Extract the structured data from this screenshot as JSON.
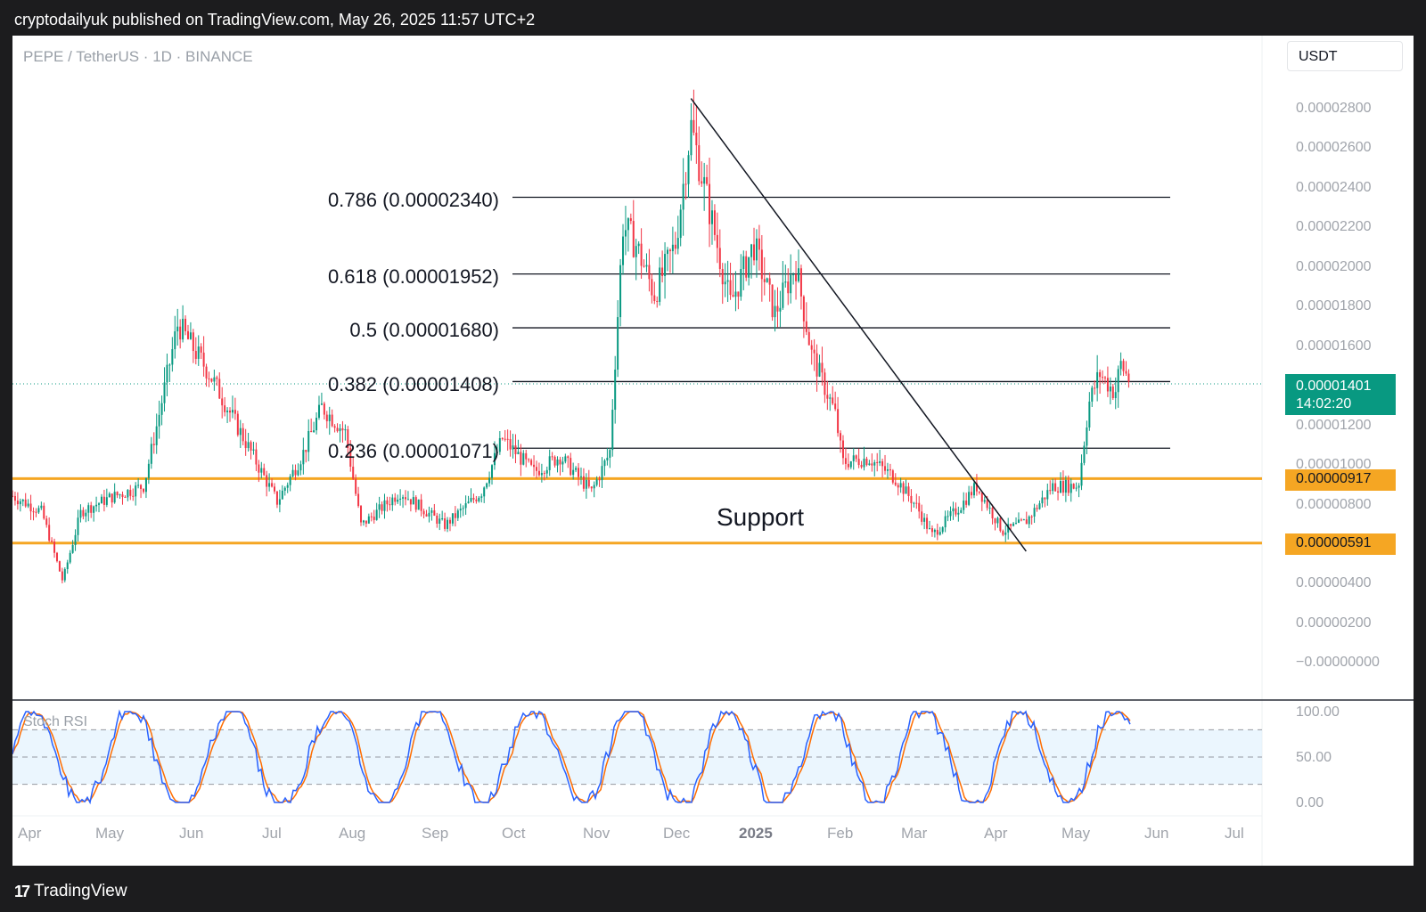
{
  "header": {
    "publisher_line": "cryptodailyuk published on TradingView.com, May 26, 2025 11:57 UTC+2"
  },
  "chart": {
    "symbol_info": "PEPE / TetherUS · 1D · BINANCE",
    "currency": "USDT",
    "support_label": "Support",
    "rsi_label": "Stoch RSI"
  },
  "footer": {
    "brand": "TradingView",
    "logo_icon": "tradingview-logo-icon"
  },
  "colors": {
    "support_line": "#f5a623",
    "last_price": "#089981",
    "up_candle": "#089981",
    "down_candle": "#f23645",
    "k_line": "#2962ff",
    "d_line": "#ff6d00"
  },
  "chart_data": {
    "type": "candlestick",
    "y_axis": {
      "ticks": [
        "0.00002800",
        "0.00002600",
        "0.00002400",
        "0.00002200",
        "0.00002000",
        "0.00001800",
        "0.00001600",
        "0.00001200",
        "0.00001000",
        "0.00000800",
        "0.00000400",
        "0.00000200",
        "−0.00000000"
      ],
      "range": [
        0,
        2.8e-05
      ]
    },
    "x_axis": {
      "ticks": [
        "Apr",
        "May",
        "Jun",
        "Jul",
        "Aug",
        "Sep",
        "Oct",
        "Nov",
        "Dec",
        "2025",
        "Feb",
        "Mar",
        "Apr",
        "May",
        "Jun",
        "Jul"
      ]
    },
    "fib_levels": [
      {
        "label": "0.786 (0.00002340)",
        "value": 2.34e-05
      },
      {
        "label": "0.618 (0.00001952)",
        "value": 1.952e-05
      },
      {
        "label": "0.5 (0.00001680)",
        "value": 1.68e-05
      },
      {
        "label": "0.382 (0.00001408)",
        "value": 1.408e-05
      },
      {
        "label": "0.236 (0.00001071)",
        "value": 1.071e-05
      }
    ],
    "support_levels": [
      {
        "label": "0.00000917",
        "value": 9.17e-06
      },
      {
        "label": "0.00000591",
        "value": 5.91e-06
      }
    ],
    "last_price": {
      "label": "0.00001401",
      "countdown": "14:02:20",
      "value": 1.401e-05
    },
    "trendline": {
      "from": {
        "date": "2024-12-09",
        "value": 2.84e-05
      },
      "to": {
        "date": "2025-04-16",
        "value": 5.5e-06
      }
    },
    "price_path": [
      [
        "2024-03-22",
        8.5e-06
      ],
      [
        "2024-04-05",
        7.5e-06
      ],
      [
        "2024-04-13",
        4e-06
      ],
      [
        "2024-04-20",
        7.5e-06
      ],
      [
        "2024-05-01",
        8.2e-06
      ],
      [
        "2024-05-14",
        8.8e-06
      ],
      [
        "2024-05-20",
        1.25e-05
      ],
      [
        "2024-05-27",
        1.7e-05
      ],
      [
        "2024-06-08",
        1.45e-05
      ],
      [
        "2024-06-20",
        1.15e-05
      ],
      [
        "2024-07-04",
        8e-06
      ],
      [
        "2024-07-14",
        1.05e-05
      ],
      [
        "2024-07-21",
        1.28e-05
      ],
      [
        "2024-07-30",
        1.15e-05
      ],
      [
        "2024-08-05",
        6.8e-06
      ],
      [
        "2024-08-20",
        8.5e-06
      ],
      [
        "2024-09-06",
        6.8e-06
      ],
      [
        "2024-09-20",
        8.5e-06
      ],
      [
        "2024-09-28",
        1.12e-05
      ],
      [
        "2024-10-10",
        9.5e-06
      ],
      [
        "2024-10-20",
        1.03e-05
      ],
      [
        "2024-11-01",
        8.5e-06
      ],
      [
        "2024-11-08",
        1.05e-05
      ],
      [
        "2024-11-13",
        2.2e-05
      ],
      [
        "2024-11-18",
        2.1e-05
      ],
      [
        "2024-11-25",
        1.85e-05
      ],
      [
        "2024-12-03",
        2.1e-05
      ],
      [
        "2024-12-09",
        2.7e-05
      ],
      [
        "2024-12-19",
        2.1e-05
      ],
      [
        "2024-12-24",
        1.8e-05
      ],
      [
        "2025-01-02",
        2.1e-05
      ],
      [
        "2025-01-10",
        1.75e-05
      ],
      [
        "2025-01-18",
        2e-05
      ],
      [
        "2025-01-24",
        1.55e-05
      ],
      [
        "2025-02-02",
        1.25e-05
      ],
      [
        "2025-02-05",
        1e-05
      ],
      [
        "2025-02-15",
        1.02e-05
      ],
      [
        "2025-02-25",
        9.2e-06
      ],
      [
        "2025-03-05",
        7.8e-06
      ],
      [
        "2025-03-11",
        6.3e-06
      ],
      [
        "2025-03-22",
        7.8e-06
      ],
      [
        "2025-03-28",
        8.8e-06
      ],
      [
        "2025-04-07",
        6.5e-06
      ],
      [
        "2025-04-16",
        7e-06
      ],
      [
        "2025-04-26",
        8.8e-06
      ],
      [
        "2025-05-06",
        8.8e-06
      ],
      [
        "2025-05-10",
        1.3e-05
      ],
      [
        "2025-05-14",
        1.45e-05
      ],
      [
        "2025-05-20",
        1.35e-05
      ],
      [
        "2025-05-22",
        1.5e-05
      ],
      [
        "2025-05-26",
        1.4e-05
      ]
    ],
    "stoch_rsi": {
      "ticks": [
        "100.00",
        "50.00",
        "0.00"
      ],
      "bands": [
        80,
        50,
        20
      ],
      "series": [
        {
          "name": "K",
          "color": "#2962ff"
        },
        {
          "name": "D",
          "color": "#ff6d00"
        }
      ]
    }
  }
}
